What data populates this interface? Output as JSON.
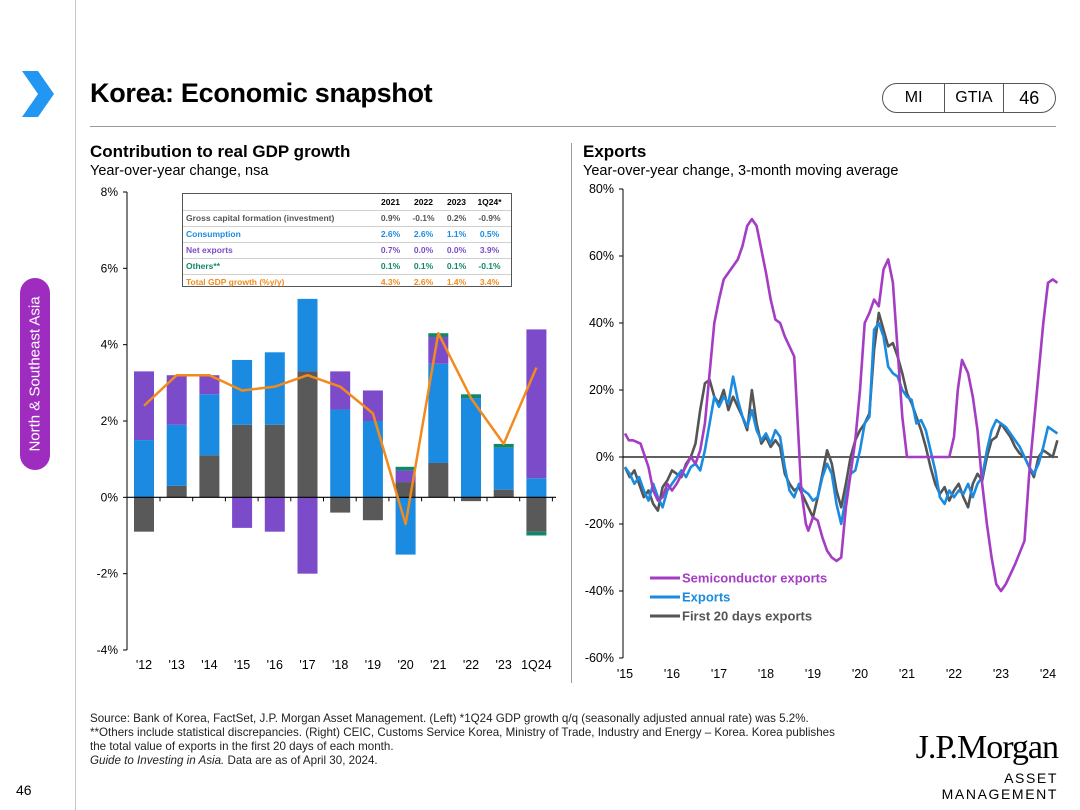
{
  "page": {
    "title": "Korea: Economic snapshot",
    "badges": [
      "MI",
      "GTIA",
      "46"
    ],
    "side_tab": "North & Southeast Asia",
    "page_number": "46",
    "accent_color": "#2196f3",
    "tab_color": "#9e2dbf"
  },
  "left_panel": {
    "title": "Contribution to real GDP growth",
    "subtitle": "Year-over-year change, nsa"
  },
  "right_panel": {
    "title": "Exports",
    "subtitle": "Year-over-year change, 3-month moving average"
  },
  "gdp_table": {
    "headers": [
      "",
      "2021",
      "2022",
      "2023",
      "1Q24*"
    ],
    "rows": [
      {
        "label": "Gross capital formation (investment)",
        "values": [
          "0.9%",
          "-0.1%",
          "0.2%",
          "-0.9%"
        ],
        "color": "#555555"
      },
      {
        "label": "Consumption",
        "values": [
          "2.6%",
          "2.6%",
          "1.1%",
          "0.5%"
        ],
        "color": "#1a8be0"
      },
      {
        "label": "Net exports",
        "values": [
          "0.7%",
          "0.0%",
          "0.0%",
          "3.9%"
        ],
        "color": "#7c4bc9"
      },
      {
        "label": "Others**",
        "values": [
          "0.1%",
          "0.1%",
          "0.1%",
          "-0.1%"
        ],
        "color": "#13876b"
      },
      {
        "label": "Total GDP growth (%y/y)",
        "values": [
          "4.3%",
          "2.6%",
          "1.4%",
          "3.4%"
        ],
        "color": "#f28a1d"
      }
    ]
  },
  "chart_data": [
    {
      "type": "bar",
      "title": "Contribution to real GDP growth",
      "subtitle": "Year-over-year change, nsa",
      "ylim": [
        -4,
        8
      ],
      "yticks": [
        -4,
        -2,
        0,
        2,
        4,
        6,
        8
      ],
      "ytick_labels": [
        "-4%",
        "-2%",
        "0%",
        "2%",
        "4%",
        "6%",
        "8%"
      ],
      "categories": [
        "'12",
        "'13",
        "'14",
        "'15",
        "'16",
        "'17",
        "'18",
        "'19",
        "'20",
        "'21",
        "'22",
        "'23",
        "1Q24"
      ],
      "stacked": true,
      "series": [
        {
          "name": "Gross capital formation (investment)",
          "color": "#595959",
          "values": [
            -0.9,
            0.3,
            1.1,
            1.9,
            1.9,
            3.3,
            -0.4,
            -0.6,
            0.4,
            0.9,
            -0.1,
            0.2,
            -0.9
          ]
        },
        {
          "name": "Consumption",
          "color": "#1a8be0",
          "values": [
            1.5,
            1.6,
            1.6,
            1.7,
            1.9,
            1.9,
            2.3,
            2.0,
            -1.5,
            2.6,
            2.6,
            1.1,
            0.5
          ]
        },
        {
          "name": "Net exports",
          "color": "#7c4bc9",
          "values": [
            1.8,
            1.3,
            0.5,
            -0.8,
            -0.9,
            -2.0,
            1.0,
            0.8,
            0.3,
            0.7,
            0.0,
            0.0,
            3.9
          ]
        },
        {
          "name": "Others",
          "color": "#13876b",
          "values": [
            0.0,
            0.0,
            0.0,
            0.0,
            0.0,
            0.0,
            0.0,
            0.0,
            0.1,
            0.1,
            0.1,
            0.1,
            -0.1
          ]
        }
      ],
      "line": {
        "name": "Total GDP growth (%y/y)",
        "color": "#f28a1d",
        "values": [
          2.4,
          3.2,
          3.2,
          2.8,
          2.9,
          3.2,
          2.9,
          2.2,
          -0.7,
          4.3,
          2.6,
          1.4,
          3.4
        ]
      }
    },
    {
      "type": "line",
      "title": "Exports",
      "subtitle": "Year-over-year change, 3-month moving average",
      "ylim": [
        -60,
        80
      ],
      "yticks": [
        -60,
        -40,
        -20,
        0,
        20,
        40,
        60,
        80
      ],
      "ytick_labels": [
        "-60%",
        "-40%",
        "-20%",
        "0%",
        "20%",
        "40%",
        "60%",
        "80%"
      ],
      "xlim": [
        2015,
        2024.25
      ],
      "xticks": [
        2015,
        2016,
        2017,
        2018,
        2019,
        2020,
        2021,
        2022,
        2023,
        2024
      ],
      "xtick_labels": [
        "'15",
        "'16",
        "'17",
        "'18",
        "'19",
        "'20",
        "'21",
        "'22",
        "'23",
        "'24"
      ],
      "series": [
        {
          "name": "Semiconductor exports",
          "color": "#a53cc4",
          "x": [
            2015.0,
            2015.08,
            2015.17,
            2015.33,
            2015.5,
            2015.6,
            2015.7,
            2015.8,
            2015.9,
            2016.0,
            2016.1,
            2016.25,
            2016.4,
            2016.5,
            2016.6,
            2016.7,
            2016.8,
            2016.9,
            2017.0,
            2017.1,
            2017.2,
            2017.3,
            2017.4,
            2017.5,
            2017.6,
            2017.7,
            2017.8,
            2017.9,
            2018.0,
            2018.1,
            2018.2,
            2018.3,
            2018.4,
            2018.6,
            2018.75,
            2018.85,
            2018.9,
            2019.0,
            2019.1,
            2019.2,
            2019.3,
            2019.4,
            2019.5,
            2019.6,
            2019.7,
            2019.8,
            2019.9,
            2020.0,
            2020.1,
            2020.2,
            2020.3,
            2020.4,
            2020.5,
            2020.6,
            2020.7,
            2020.8,
            2020.9,
            2021.0,
            2021.1,
            2021.2,
            2021.25,
            2021.4,
            2021.6,
            2021.8,
            2021.9,
            2022.0,
            2022.08,
            2022.17,
            2022.3,
            2022.4,
            2022.5,
            2022.6,
            2022.7,
            2022.8,
            2022.9,
            2023.0,
            2023.1,
            2023.2,
            2023.3,
            2023.5,
            2023.6,
            2023.7,
            2023.8,
            2023.9,
            2024.0,
            2024.1,
            2024.2
          ],
          "y": [
            7,
            5,
            5,
            4,
            -3,
            -10,
            -13,
            -12,
            -8,
            -10,
            -8,
            -4,
            0,
            -2,
            2,
            10,
            25,
            40,
            47,
            53,
            55,
            57,
            59,
            63,
            69,
            71,
            69,
            62,
            55,
            47,
            41,
            40,
            36,
            30,
            -10,
            -20,
            -22,
            -18,
            -19,
            -24,
            -28,
            -30,
            -31,
            -30,
            -15,
            -5,
            5,
            20,
            40,
            43,
            47,
            45,
            56,
            59,
            52,
            32,
            12,
            0,
            0,
            0,
            0,
            0,
            0,
            0,
            0,
            6,
            20,
            29,
            25,
            18,
            8,
            -8,
            -20,
            -30,
            -38,
            -40,
            -38,
            -35,
            -32,
            -25,
            -5,
            10,
            25,
            40,
            52,
            53,
            52
          ]
        },
        {
          "name": "Exports",
          "color": "#1a8be0",
          "x": [
            2015.0,
            2015.1,
            2015.2,
            2015.3,
            2015.4,
            2015.5,
            2015.6,
            2015.7,
            2015.8,
            2015.9,
            2016.0,
            2016.1,
            2016.2,
            2016.3,
            2016.4,
            2016.5,
            2016.6,
            2016.7,
            2016.8,
            2016.9,
            2017.0,
            2017.1,
            2017.2,
            2017.3,
            2017.4,
            2017.5,
            2017.6,
            2017.7,
            2017.8,
            2017.9,
            2018.0,
            2018.1,
            2018.2,
            2018.3,
            2018.4,
            2018.5,
            2018.6,
            2018.7,
            2018.8,
            2018.9,
            2019.0,
            2019.1,
            2019.2,
            2019.3,
            2019.4,
            2019.5,
            2019.6,
            2019.7,
            2019.8,
            2019.9,
            2020.0,
            2020.1,
            2020.2,
            2020.3,
            2020.4,
            2020.5,
            2020.6,
            2020.7,
            2020.8,
            2020.9,
            2021.0,
            2021.1,
            2021.2,
            2021.3,
            2021.4,
            2021.5,
            2021.6,
            2021.7,
            2021.8,
            2021.9,
            2022.0,
            2022.1,
            2022.2,
            2022.3,
            2022.4,
            2022.5,
            2022.6,
            2022.7,
            2022.8,
            2022.9,
            2023.0,
            2023.1,
            2023.2,
            2023.3,
            2023.4,
            2023.5,
            2023.6,
            2023.7,
            2023.8,
            2023.9,
            2024.0,
            2024.1,
            2024.2
          ],
          "y": [
            -3,
            -5,
            -8,
            -6,
            -10,
            -13,
            -8,
            -12,
            -15,
            -10,
            -8,
            -6,
            -4,
            -6,
            -3,
            -2,
            -4,
            2,
            10,
            18,
            15,
            18,
            16,
            24,
            17,
            12,
            9,
            14,
            8,
            5,
            7,
            4,
            8,
            6,
            -3,
            -10,
            -12,
            -8,
            -10,
            -11,
            -13,
            -12,
            -6,
            -2,
            -5,
            -14,
            -20,
            -12,
            -5,
            -4,
            2,
            10,
            12,
            38,
            40,
            36,
            27,
            25,
            24,
            20,
            18,
            17,
            10,
            11,
            8,
            2,
            -4,
            -12,
            -14,
            -10,
            -12,
            -10,
            -11,
            -8,
            -12,
            -8,
            -6,
            2,
            8,
            11,
            10,
            9,
            7,
            5,
            3,
            0,
            -3,
            -5,
            -2,
            3,
            9,
            8,
            7
          ],
          "x_note": "x values beyond 2021.5 reuse decimal-year placement continuing to 2024.2"
        },
        {
          "name": "First 20 days exports",
          "color": "#555555",
          "x": [
            2015.0,
            2015.1,
            2015.2,
            2015.3,
            2015.4,
            2015.5,
            2015.6,
            2015.7,
            2015.8,
            2015.9,
            2016.0,
            2016.1,
            2016.2,
            2016.3,
            2016.4,
            2016.5,
            2016.6,
            2016.7,
            2016.8,
            2016.9,
            2017.0,
            2017.1,
            2017.2,
            2017.3,
            2017.4,
            2017.5,
            2017.6,
            2017.7,
            2017.8,
            2017.9,
            2018.0,
            2018.1,
            2018.2,
            2018.3,
            2018.4,
            2018.5,
            2018.6,
            2018.7,
            2018.8,
            2018.9,
            2019.0,
            2019.1,
            2019.2,
            2019.3,
            2019.4,
            2019.5,
            2019.6,
            2019.7,
            2019.8,
            2019.9,
            2020.0,
            2020.1,
            2020.2,
            2020.3,
            2020.4,
            2020.5,
            2020.6,
            2020.7,
            2020.8,
            2020.9,
            2021.0,
            2021.1,
            2021.2,
            2021.3,
            2021.4,
            2021.5,
            2021.6,
            2021.7,
            2021.8,
            2021.9,
            2022.0,
            2022.1,
            2022.2,
            2022.3,
            2022.4,
            2022.5,
            2022.6,
            2022.7,
            2022.8,
            2022.9,
            2023.0,
            2023.1,
            2023.2,
            2023.3,
            2023.4,
            2023.5,
            2023.6,
            2023.7,
            2023.8,
            2023.9,
            2024.0,
            2024.1,
            2024.2
          ],
          "y": [
            -3,
            -6,
            -4,
            -8,
            -12,
            -10,
            -14,
            -16,
            -9,
            -7,
            -4,
            -5,
            -6,
            -2,
            0,
            4,
            14,
            22,
            23,
            18,
            16,
            20,
            14,
            18,
            15,
            12,
            8,
            20,
            10,
            4,
            6,
            3,
            5,
            3,
            -5,
            -8,
            -10,
            -9,
            -12,
            -15,
            -18,
            -12,
            -5,
            2,
            -2,
            -10,
            -15,
            -8,
            0,
            5,
            8,
            10,
            13,
            32,
            43,
            38,
            33,
            34,
            30,
            25,
            19,
            16,
            12,
            8,
            3,
            -3,
            -8,
            -11,
            -9,
            -13,
            -10,
            -8,
            -12,
            -15,
            -8,
            -5,
            -7,
            0,
            5,
            6,
            10,
            8,
            6,
            3,
            1,
            0,
            -3,
            -6,
            0,
            2,
            1,
            0,
            5
          ],
          "x_note": "decimal years"
        }
      ],
      "legend": [
        "Semiconductor exports",
        "Exports",
        "First 20 days exports"
      ]
    }
  ],
  "footnote": {
    "line1": "Source: Bank of Korea, FactSet, J.P. Morgan Asset Management. (Left) *1Q24 GDP growth q/q (seasonally adjusted annual rate) was 5.2%.",
    "line2": "**Others include statistical discrepancies. (Right) CEIC, Customs Service Korea, Ministry of Trade, Industry and Energy – Korea. Korea publishes",
    "line3": "the total value of exports in the first 20 days of each month.",
    "line4_italic": "Guide to Investing in Asia.",
    "line4_rest": " Data are as of April 30, 2024."
  },
  "logo": {
    "line1": "J.P.Morgan",
    "line2": "ASSET MANAGEMENT"
  }
}
